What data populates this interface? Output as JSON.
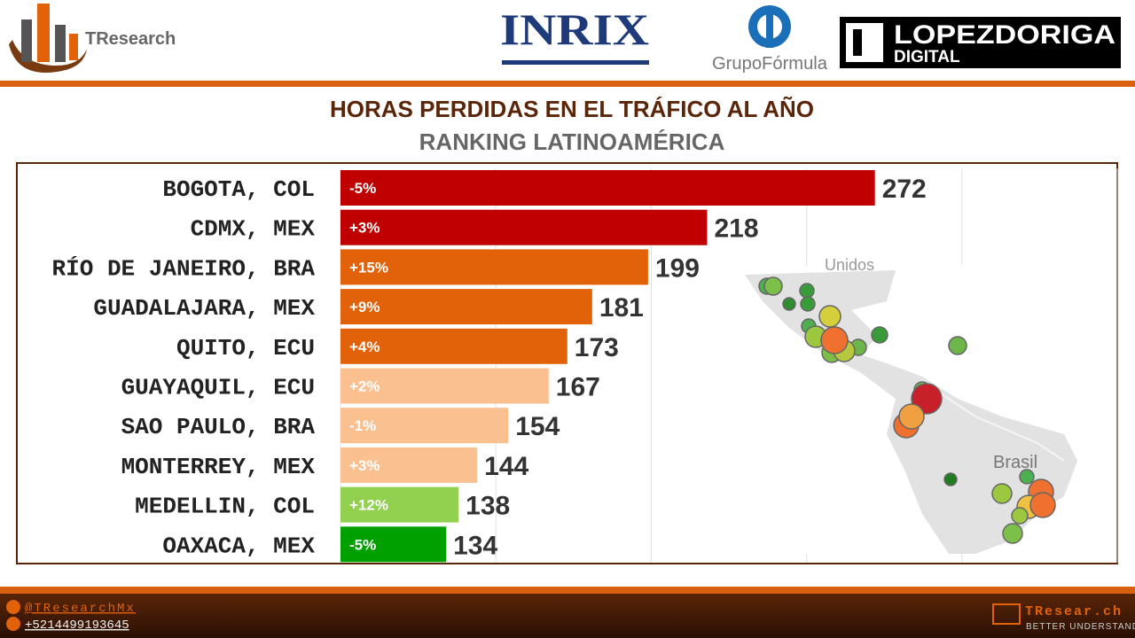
{
  "header": {
    "brand": "TResearch",
    "partners": [
      "INRIX",
      "GrupoFórmula",
      "LOPEZDORIGA",
      "DIGITAL"
    ]
  },
  "chart_data": {
    "type": "bar",
    "orientation": "horizontal",
    "title": "HORAS PERDIDAS EN EL TRÁFICO AL AÑO",
    "subtitle": "RANKING LATINOAMÉRICA",
    "categories": [
      "BOGOTA, COL",
      "CDMX, MEX",
      "RÍO DE JANEIRO, BRA",
      "GUADALAJARA, MEX",
      "QUITO, ECU",
      "GUAYAQUIL, ECU",
      "SAO PAULO, BRA",
      "MONTERREY, MEX",
      "MEDELLIN, COL",
      "OAXACA, MEX"
    ],
    "values": [
      272,
      218,
      199,
      181,
      173,
      167,
      154,
      144,
      138,
      134
    ],
    "change_labels": [
      "-5%",
      "+3%",
      "+15%",
      "+9%",
      "+4%",
      "+2%",
      "-1%",
      "+3%",
      "+12%",
      "-5%"
    ],
    "colors": [
      "#c00000",
      "#c00000",
      "#e2620a",
      "#e2620a",
      "#e2620a",
      "#fac090",
      "#fac090",
      "#fac090",
      "#92d050",
      "#00a000"
    ],
    "xlim": [
      100,
      350
    ],
    "xticks": [
      100,
      150,
      200,
      250,
      300,
      350
    ],
    "grid": true
  },
  "map": {
    "labels": [
      "Unidos",
      "Brasil"
    ]
  },
  "footer": {
    "twitter": "@TResearchMx",
    "phone": "+5214499193645",
    "site": "TResear.ch",
    "tagline": "BETTER UNDERSTAND"
  }
}
